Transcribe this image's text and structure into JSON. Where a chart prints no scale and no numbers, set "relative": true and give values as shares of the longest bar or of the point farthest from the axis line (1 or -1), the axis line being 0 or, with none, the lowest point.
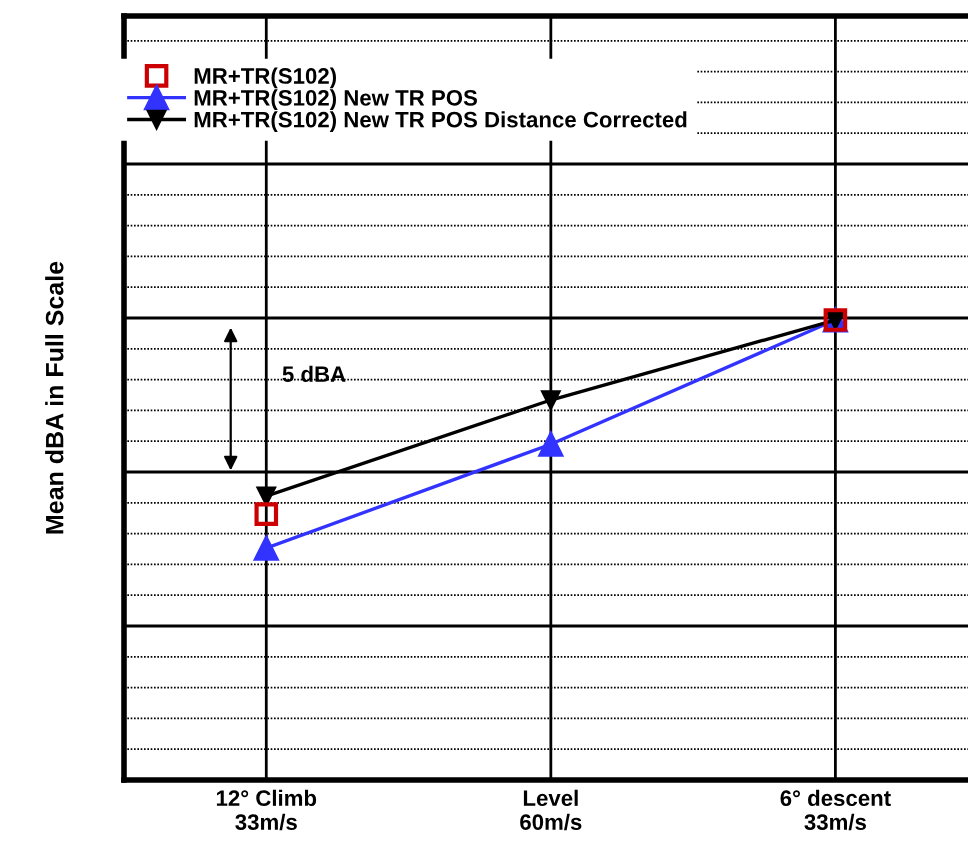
{
  "chart_data": {
    "type": "line",
    "ylabel": "Mean dBA in Full Scale",
    "categories": [
      "12° Climb\n33m/s",
      "Level\n60m/s",
      "6° descent\n33m/s"
    ],
    "relative": true,
    "grid": true,
    "legend": "top left",
    "series": [
      {
        "name": "MR+TR(S102)",
        "type": "scatter",
        "color": "#cc0000",
        "marker": "square",
        "values": [
          0.578,
          null,
          1.0
        ]
      },
      {
        "name": "MR+TR(S102) New TR POS",
        "color": "#3333ff",
        "marker": "triangle",
        "values": [
          0.504,
          0.73,
          1.0
        ]
      },
      {
        "name": "MR+TR(S102) New TR POS Distance Corrected",
        "color": "#000000",
        "marker": "triangle_down",
        "values": [
          0.617,
          0.826,
          1.0
        ]
      }
    ],
    "annotations": [
      "5 dBA"
    ]
  }
}
